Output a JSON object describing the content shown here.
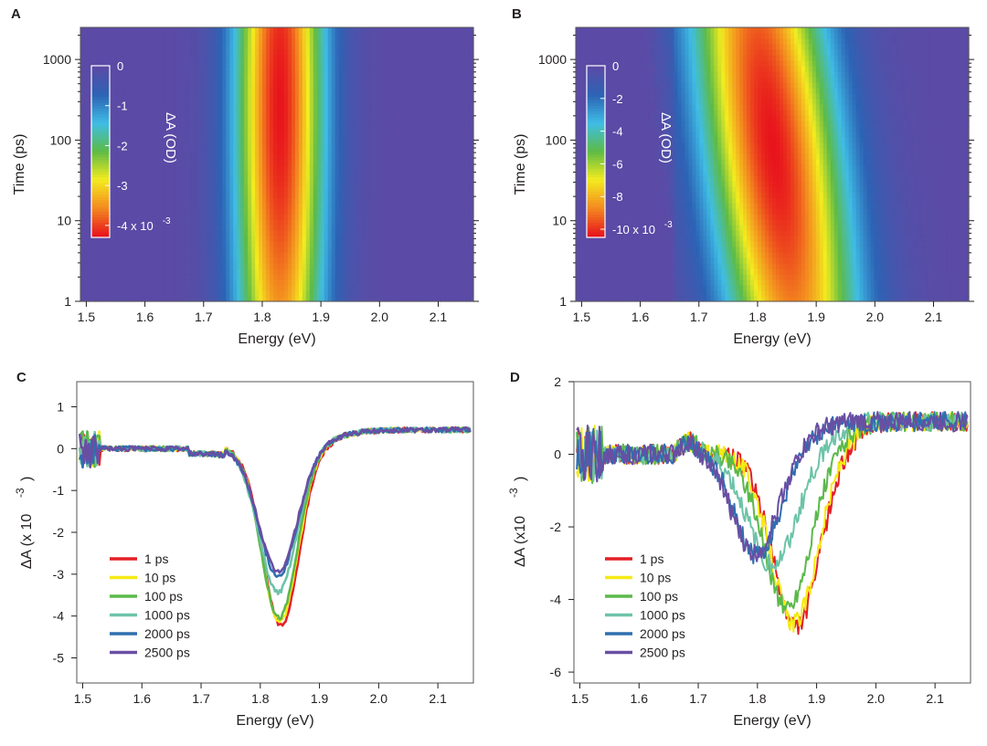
{
  "figure": {
    "panels": [
      "A",
      "B",
      "C",
      "D"
    ]
  },
  "chart_data": [
    {
      "panel": "A",
      "type": "heatmap",
      "xlabel": "Energy (eV)",
      "ylabel": "Time (ps)",
      "x_ticks": [
        "1.5",
        "1.6",
        "1.7",
        "1.8",
        "1.9",
        "2.0",
        "2.1"
      ],
      "y_ticks": [
        "1",
        "10",
        "100",
        "1000"
      ],
      "xlim": [
        1.49,
        2.16
      ],
      "ylim": [
        1,
        2500
      ],
      "y_scale": "log",
      "colorbar": {
        "label": "ΔA (OD)",
        "ticks": [
          "0",
          "-1",
          "-2",
          "-3",
          "-4 x 10"
        ],
        "exponent": "-3",
        "range": [
          -4.3,
          0
        ],
        "placement": "inside-left"
      },
      "bleach_feature": {
        "center_eV": 1.83,
        "width_eV": 0.075,
        "min_value": -4.3,
        "shift": "none"
      },
      "colors": [
        "#5b4ba6",
        "#2c63b5",
        "#3fbde5",
        "#5dbb46",
        "#f3ec1f",
        "#f38b1f",
        "#e8141d"
      ]
    },
    {
      "panel": "B",
      "type": "heatmap",
      "xlabel": "Energy (eV)",
      "ylabel": "Time (ps)",
      "x_ticks": [
        "1.5",
        "1.6",
        "1.7",
        "1.8",
        "1.9",
        "2.0",
        "2.1"
      ],
      "y_ticks": [
        "1",
        "10",
        "100",
        "1000"
      ],
      "xlim": [
        1.49,
        2.16
      ],
      "ylim": [
        1,
        2500
      ],
      "y_scale": "log",
      "colorbar": {
        "label": "ΔA (OD)",
        "ticks": [
          "0",
          "-2",
          "-4",
          "-6",
          "-8",
          "-10 x 10"
        ],
        "exponent": "-3",
        "range": [
          -10.5,
          0
        ],
        "placement": "inside-left"
      },
      "bleach_feature": {
        "center_eV_at_1ps": 1.86,
        "center_eV_at_2500ps": 1.8,
        "width_eV": 0.115,
        "min_value": -10.5,
        "shift": "red-shift with time"
      },
      "colors": [
        "#5b4ba6",
        "#2c63b5",
        "#3fbde5",
        "#5dbb46",
        "#f3ec1f",
        "#f38b1f",
        "#e8141d"
      ]
    },
    {
      "panel": "C",
      "type": "line",
      "xlabel": "Energy (eV)",
      "ylabel": "ΔA (x 10",
      "ylabel_exponent": "-3",
      "x_ticks": [
        "1.5",
        "1.6",
        "1.7",
        "1.8",
        "1.9",
        "2.0",
        "2.1"
      ],
      "y_ticks": [
        "1",
        "0",
        "-1",
        "-2",
        "-3",
        "-4",
        "-5"
      ],
      "xlim": [
        1.49,
        2.16
      ],
      "ylim": [
        -5.6,
        1.6
      ],
      "legend_position": "bottom-left",
      "series": [
        {
          "name": "1 ps",
          "color": "#e41f26",
          "dip_center": 1.835,
          "dip_min": -4.25,
          "dip_width": 0.043
        },
        {
          "name": "10 ps",
          "color": "#f5ea14",
          "dip_center": 1.833,
          "dip_min": -4.15,
          "dip_width": 0.043
        },
        {
          "name": "100 ps",
          "color": "#5bb84a",
          "dip_center": 1.832,
          "dip_min": -4.05,
          "dip_width": 0.043
        },
        {
          "name": "1000 ps",
          "color": "#6cc3a8",
          "dip_center": 1.83,
          "dip_min": -3.45,
          "dip_width": 0.045
        },
        {
          "name": "2000 ps",
          "color": "#2f6fb0",
          "dip_center": 1.83,
          "dip_min": -3.05,
          "dip_width": 0.046
        },
        {
          "name": "2500 ps",
          "color": "#6a4ea3",
          "dip_center": 1.83,
          "dip_min": -2.95,
          "dip_width": 0.046
        }
      ]
    },
    {
      "panel": "D",
      "type": "line",
      "xlabel": "Energy (eV)",
      "ylabel": "ΔA (x10",
      "ylabel_exponent": "-3",
      "x_ticks": [
        "1.5",
        "1.6",
        "1.7",
        "1.8",
        "1.9",
        "2.0",
        "2.1"
      ],
      "y_ticks": [
        "2",
        "0",
        "-2",
        "-4",
        "-6"
      ],
      "xlim": [
        1.49,
        2.16
      ],
      "ylim": [
        -6.3,
        2.0
      ],
      "legend_position": "bottom-left",
      "series": [
        {
          "name": "1 ps",
          "color": "#e41f26",
          "dip_center": 1.865,
          "dip_min": -4.75,
          "dip_width": 0.055
        },
        {
          "name": "10 ps",
          "color": "#f5ea14",
          "dip_center": 1.862,
          "dip_min": -4.65,
          "dip_width": 0.055
        },
        {
          "name": "100 ps",
          "color": "#5bb84a",
          "dip_center": 1.85,
          "dip_min": -4.25,
          "dip_width": 0.055
        },
        {
          "name": "1000 ps",
          "color": "#6cc3a8",
          "dip_center": 1.825,
          "dip_min": -3.05,
          "dip_width": 0.058
        },
        {
          "name": "2000 ps",
          "color": "#2f6fb0",
          "dip_center": 1.8,
          "dip_min": -2.8,
          "dip_width": 0.052
        },
        {
          "name": "2500 ps",
          "color": "#6a4ea3",
          "dip_center": 1.795,
          "dip_min": -2.75,
          "dip_width": 0.052
        }
      ]
    }
  ]
}
